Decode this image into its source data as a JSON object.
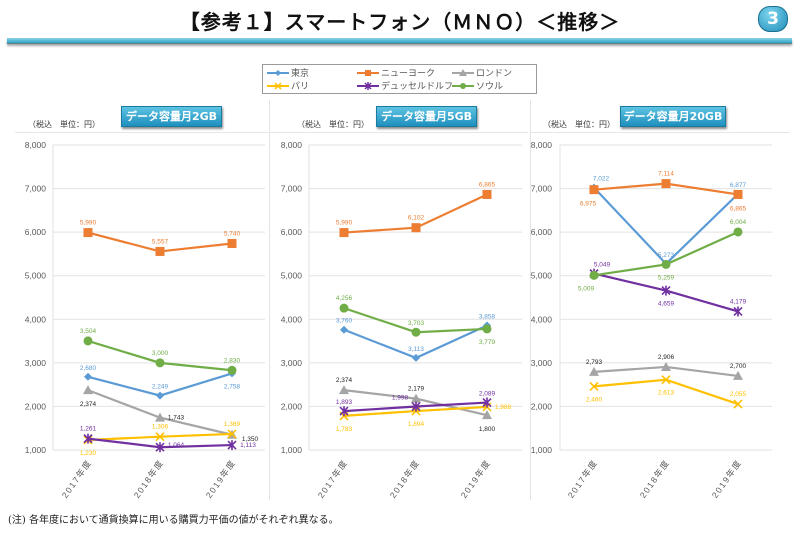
{
  "page": {
    "title": "【参考１】スマートフォン（ＭＮＯ）＜推移＞",
    "page_number": "3",
    "note": "(注) 各年度において通貨換算に用いる購買力平価の値がそれぞれ異なる。"
  },
  "legend": [
    {
      "name": "東京",
      "color": "#5b9bd5",
      "marker": "diamond"
    },
    {
      "name": "ニューヨーク",
      "color": "#ed7d31",
      "marker": "square"
    },
    {
      "name": "ロンドン",
      "color": "#a5a5a5",
      "marker": "triangle"
    },
    {
      "name": "パリ",
      "color": "#ffc000",
      "marker": "x"
    },
    {
      "name": "デュッセルドルフ",
      "color": "#7030a0",
      "marker": "star"
    },
    {
      "name": "ソウル",
      "color": "#70ad47",
      "marker": "circle"
    }
  ],
  "chart_data": [
    {
      "type": "line",
      "title": "データ容量月2GB",
      "unit_label": "（税込　単位：円）",
      "categories": [
        "2017年度",
        "2018年度",
        "2019年度"
      ],
      "ylim": [
        1000,
        8000
      ],
      "yticks": [
        "1,000",
        "2,000",
        "3,000",
        "4,000",
        "5,000",
        "6,000",
        "7,000",
        "8,000"
      ],
      "grid": true,
      "legend_position": "top-center",
      "series": [
        {
          "name": "東京",
          "values": [
            2680,
            2249,
            2758
          ],
          "labels": [
            "2,680",
            "2,249",
            "2,758"
          ]
        },
        {
          "name": "ニューヨーク",
          "values": [
            5990,
            5557,
            5740
          ],
          "labels": [
            "5,990",
            "5,557",
            "5,740"
          ]
        },
        {
          "name": "ロンドン",
          "values": [
            2374,
            1743,
            1350
          ],
          "labels": [
            "2,374",
            "1,743",
            "1,350"
          ]
        },
        {
          "name": "パリ",
          "values": [
            1230,
            1306,
            1369
          ],
          "labels": [
            "1,230",
            "1,306",
            "1,369"
          ]
        },
        {
          "name": "デュッセルドルフ",
          "values": [
            1261,
            1064,
            1113
          ],
          "labels": [
            "1,261",
            "1,064",
            "1,113"
          ]
        },
        {
          "name": "ソウル",
          "values": [
            3504,
            3000,
            2830
          ],
          "labels": [
            "3,504",
            "3,000",
            "2,830"
          ]
        }
      ]
    },
    {
      "type": "line",
      "title": "データ容量月5GB",
      "unit_label": "（税込　単位：円）",
      "categories": [
        "2017年度",
        "2018年度",
        "2019年度"
      ],
      "ylim": [
        1000,
        8000
      ],
      "yticks": [
        "1,000",
        "2,000",
        "3,000",
        "4,000",
        "5,000",
        "6,000",
        "7,000",
        "8,000"
      ],
      "grid": true,
      "legend_position": "top-center",
      "series": [
        {
          "name": "東京",
          "values": [
            3760,
            3113,
            3858
          ],
          "labels": [
            "3,760",
            "3,113",
            "3,858"
          ]
        },
        {
          "name": "ニューヨーク",
          "values": [
            5990,
            6102,
            6865
          ],
          "labels": [
            "5,990",
            "6,102",
            "6,865"
          ]
        },
        {
          "name": "ロンドン",
          "values": [
            2374,
            2179,
            1800
          ],
          "labels": [
            "2,374",
            "2,179",
            "1,800"
          ]
        },
        {
          "name": "パリ",
          "values": [
            1783,
            1894,
            1988
          ],
          "labels": [
            "1,783",
            "1,894",
            "1,988"
          ]
        },
        {
          "name": "デュッセルドルフ",
          "values": [
            1893,
            1998,
            2089
          ],
          "labels": [
            "1,893",
            "1,998",
            "2,089"
          ]
        },
        {
          "name": "ソウル",
          "values": [
            4256,
            3703,
            3779
          ],
          "labels": [
            "4,256",
            "3,703",
            "3,779"
          ]
        }
      ]
    },
    {
      "type": "line",
      "title": "データ容量月20GB",
      "unit_label": "（税込　単位：円）",
      "categories": [
        "2017年度",
        "2018年度",
        "2019年度"
      ],
      "ylim": [
        1000,
        8000
      ],
      "yticks": [
        "1,000",
        "2,000",
        "3,000",
        "4,000",
        "5,000",
        "6,000",
        "7,000",
        "8,000"
      ],
      "grid": true,
      "legend_position": "top-center",
      "series": [
        {
          "name": "東京",
          "values": [
            7022,
            5273,
            6877
          ],
          "labels": [
            "7,022",
            "5,273",
            "6,877"
          ]
        },
        {
          "name": "ニューヨーク",
          "values": [
            6975,
            7114,
            6865
          ],
          "labels": [
            "6,975",
            "7,114",
            "6,865"
          ]
        },
        {
          "name": "ロンドン",
          "values": [
            2793,
            2906,
            2700
          ],
          "labels": [
            "2,793",
            "2,906",
            "2,700"
          ]
        },
        {
          "name": "パリ",
          "values": [
            2460,
            2613,
            2055
          ],
          "labels": [
            "2,460",
            "2,613",
            "2,055"
          ]
        },
        {
          "name": "デュッセルドルフ",
          "values": [
            5049,
            4659,
            4179
          ],
          "labels": [
            "5,049",
            "4,659",
            "4,179"
          ]
        },
        {
          "name": "ソウル",
          "values": [
            5009,
            5259,
            6004
          ],
          "labels": [
            "5,009",
            "5,259",
            "6,004"
          ]
        }
      ]
    }
  ]
}
